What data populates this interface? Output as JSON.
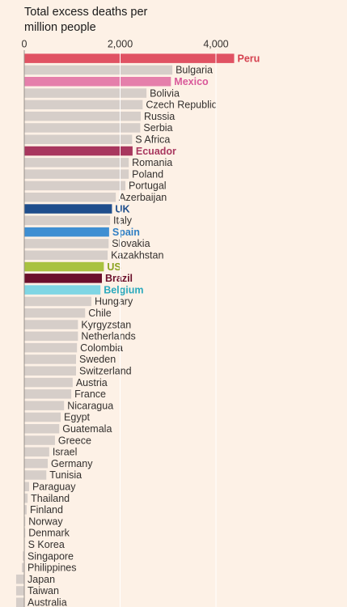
{
  "chart_data": {
    "type": "barh",
    "title": "Total excess deaths per million people",
    "categories": [
      "Peru",
      "Bulgaria",
      "Mexico",
      "Bolivia",
      "Czech Republic",
      "Russia",
      "Serbia",
      "S Africa",
      "Ecuador",
      "Romania",
      "Poland",
      "Portugal",
      "Azerbaijan",
      "UK",
      "Italy",
      "Spain",
      "Slovakia",
      "Kazakhstan",
      "US",
      "Brazil",
      "Belgium",
      "Hungary",
      "Chile",
      "Kyrgyzstan",
      "Netherlands",
      "Colombia",
      "Sweden",
      "Switzerland",
      "Austria",
      "France",
      "Nicaragua",
      "Egypt",
      "Guatemala",
      "Greece",
      "Israel",
      "Germany",
      "Tunisia",
      "Paraguay",
      "Thailand",
      "Finland",
      "Norway",
      "Denmark",
      "S Korea",
      "Singapore",
      "Philippines",
      "Japan",
      "Taiwan",
      "Australia"
    ],
    "values": [
      4380,
      3090,
      3060,
      2550,
      2470,
      2430,
      2420,
      2250,
      2260,
      2180,
      2180,
      2110,
      1910,
      1830,
      1790,
      1770,
      1760,
      1740,
      1660,
      1620,
      1590,
      1400,
      1270,
      1120,
      1120,
      1100,
      1080,
      1080,
      1010,
      980,
      830,
      760,
      730,
      640,
      520,
      490,
      460,
      100,
      70,
      50,
      20,
      20,
      10,
      -30,
      -50,
      -170,
      -170,
      -170
    ],
    "color": "#d6cec9",
    "colors": [
      "#e05263",
      "#d6cec9",
      "#e57fab",
      "#d6cec9",
      "#d6cec9",
      "#d6cec9",
      "#d6cec9",
      "#d6cec9",
      "#a8375e",
      "#d6cec9",
      "#d6cec9",
      "#d6cec9",
      "#d6cec9",
      "#1f4e8c",
      "#d6cec9",
      "#3f8fd2",
      "#d6cec9",
      "#d6cec9",
      "#a9c23f",
      "#6b0f2b",
      "#7fd6e4",
      "#d6cec9",
      "#d6cec9",
      "#d6cec9",
      "#d6cec9",
      "#d6cec9",
      "#d6cec9",
      "#d6cec9",
      "#d6cec9",
      "#d6cec9",
      "#d6cec9",
      "#d6cec9",
      "#d6cec9",
      "#d6cec9",
      "#d6cec9",
      "#d6cec9",
      "#d6cec9",
      "#d6cec9",
      "#d6cec9",
      "#d6cec9",
      "#d6cec9",
      "#d6cec9",
      "#d6cec9",
      "#d6cec9",
      "#d6cec9",
      "#d6cec9",
      "#d6cec9",
      "#d6cec9"
    ],
    "label_colors": [
      "#d5414f",
      null,
      "#d9589a",
      null,
      null,
      null,
      null,
      null,
      "#a8375e",
      null,
      null,
      null,
      null,
      "#1f4e8c",
      null,
      "#2f7fc4",
      null,
      null,
      "#8ba31f",
      "#6b0f2b",
      "#2aa9bd",
      null,
      null,
      null,
      null,
      null,
      null,
      null,
      null,
      null,
      null,
      null,
      null,
      null,
      null,
      null,
      null,
      null,
      null,
      null,
      null,
      null,
      null,
      null,
      null,
      null,
      null,
      null
    ],
    "xlim": [
      -500,
      4500
    ],
    "xticks": [
      0,
      {
        "value": 2000,
        "label": "2,000"
      },
      {
        "value": 4000,
        "label": "4,000"
      }
    ],
    "grid": true
  }
}
